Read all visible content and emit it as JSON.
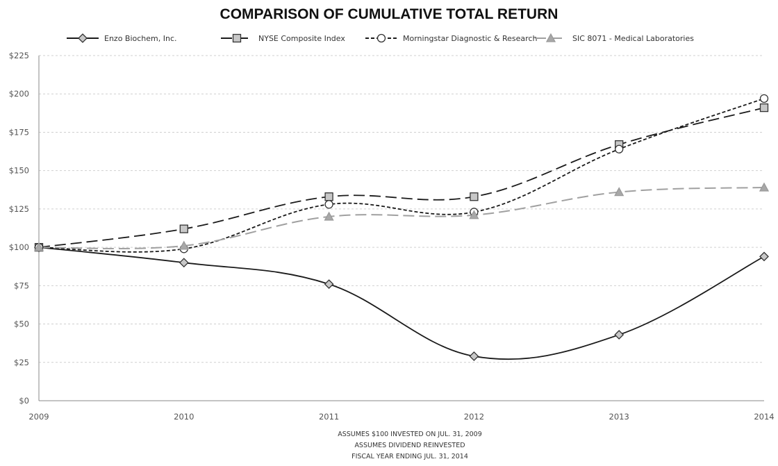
{
  "chart_data": {
    "type": "line",
    "title": "COMPARISON OF CUMULATIVE TOTAL RETURN",
    "x": [
      "2009",
      "2010",
      "2011",
      "2012",
      "2013",
      "2014"
    ],
    "y_ticks": [
      "$0",
      "$25",
      "$50",
      "$75",
      "$100",
      "$125",
      "$150",
      "$175",
      "$200",
      "$225"
    ],
    "ylim": [
      0,
      225
    ],
    "grid": true,
    "legend_position": "top",
    "series": [
      {
        "name": "Enzo Biochem, Inc.",
        "values": [
          100,
          90,
          76,
          29,
          43,
          94
        ],
        "color": "#1a1a1a",
        "dash": "solid",
        "marker": "diamond",
        "marker_fill": "#c8c8c8"
      },
      {
        "name": "NYSE Composite Index",
        "values": [
          100,
          112,
          133,
          133,
          167,
          191
        ],
        "color": "#1a1a1a",
        "dash": "long-dash",
        "marker": "square",
        "marker_fill": "#c8c8c8"
      },
      {
        "name": "Morningstar Diagnostic & Research",
        "values": [
          100,
          99,
          128,
          123,
          164,
          197
        ],
        "color": "#1a1a1a",
        "dash": "short-dash",
        "marker": "circle",
        "marker_fill": "#ffffff"
      },
      {
        "name": "SIC 8071 - Medical Laboratories",
        "values": [
          100,
          101,
          120,
          121,
          136,
          139
        ],
        "color": "#a0a0a0",
        "dash": "long-dash",
        "marker": "triangle",
        "marker_fill": "#a8a8a8"
      }
    ],
    "footnotes": [
      "ASSUMES $100 INVESTED ON JUL. 31, 2009",
      "ASSUMES DIVIDEND REINVESTED",
      "FISCAL YEAR ENDING JUL. 31, 2014"
    ]
  }
}
